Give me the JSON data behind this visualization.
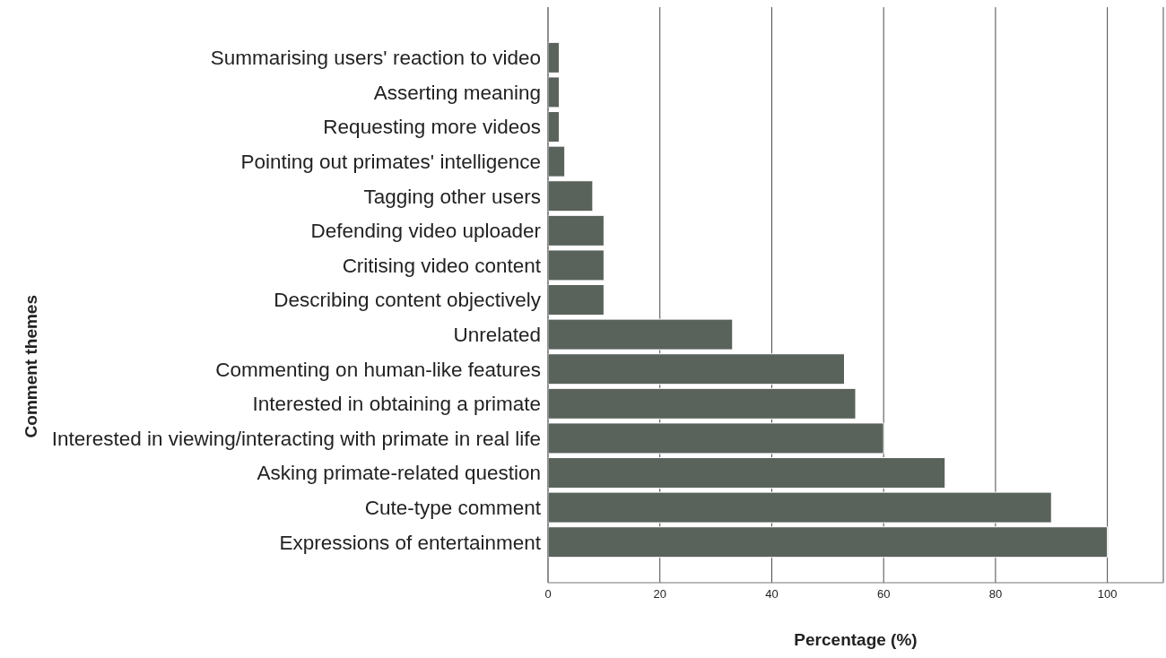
{
  "chart_data": {
    "type": "bar",
    "orientation": "horizontal",
    "xlabel": "Percentage (%)",
    "ylabel": "Comment themes",
    "categories": [
      "Summarising users' reaction to video",
      "Asserting meaning",
      "Requesting more videos",
      "Pointing out primates' intelligence",
      "Tagging other users",
      "Defending video uploader",
      "Critising video content",
      "Describing content objectively",
      "Unrelated",
      "Commenting on human-like features",
      "Interested in obtaining a primate",
      "Interested in viewing/interacting with primate in real life",
      "Asking primate-related question",
      "Cute-type comment",
      "Expressions of entertainment"
    ],
    "values": [
      2,
      2,
      2,
      3,
      8,
      10,
      10,
      10,
      33,
      53,
      55,
      60,
      71,
      90,
      100
    ],
    "color": "#5a625c",
    "xlim": [
      0,
      110
    ],
    "xticks": [
      0,
      20,
      40,
      60,
      80,
      100
    ],
    "grid": "x"
  }
}
